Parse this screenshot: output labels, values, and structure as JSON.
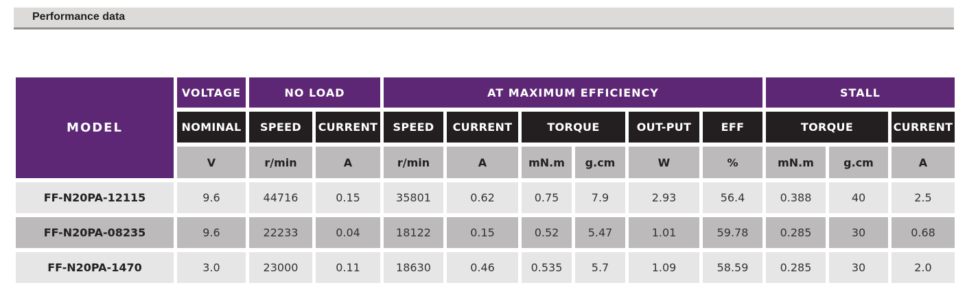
{
  "section_title": "Performance data",
  "table": {
    "model_header": "MODEL",
    "groups": [
      "VOLTAGE",
      "NO LOAD",
      "AT MAXIMUM EFFICIENCY",
      "STALL"
    ],
    "subheaders": [
      "NOMINAL",
      "SPEED",
      "CURRENT",
      "SPEED",
      "CURRENT",
      "TORQUE",
      "OUT-PUT",
      "EFF",
      "TORQUE",
      "CURRENT"
    ],
    "units": [
      "V",
      "r/min",
      "A",
      "r/min",
      "A",
      "mN.m",
      "g.cm",
      "W",
      "%",
      "mN.m",
      "g.cm",
      "A"
    ],
    "rows": [
      [
        "FF-N20PA-12115",
        "9.6",
        "44716",
        "0.15",
        "35801",
        "0.62",
        "0.75",
        "7.9",
        "2.93",
        "56.4",
        "0.388",
        "40",
        "2.5"
      ],
      [
        "FF-N20PA-08235",
        "9.6",
        "22233",
        "0.04",
        "18122",
        "0.15",
        "0.52",
        "5.47",
        "1.01",
        "59.78",
        "0.285",
        "30",
        "0.68"
      ],
      [
        "FF-N20PA-1470",
        "3.0",
        "23000",
        "0.11",
        "18630",
        "0.46",
        "0.535",
        "5.7",
        "1.09",
        "58.59",
        "0.285",
        "30",
        "2.0"
      ]
    ]
  },
  "colors": {
    "header_purple": "#5d2775",
    "subheader_black": "#231f20",
    "unit_gray": "#bcbabb",
    "row_light": "#e6e6e6",
    "row_dark": "#bcbabb"
  }
}
